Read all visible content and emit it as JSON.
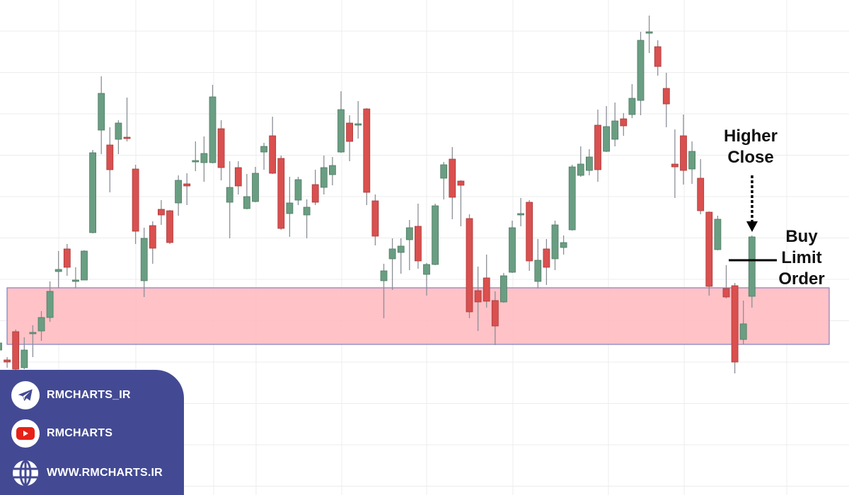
{
  "chart_data": {
    "type": "candlestick",
    "title": "",
    "xlabel": "",
    "ylabel": "",
    "ylim": [
      0,
      60
    ],
    "grid": true,
    "colors": {
      "up": "#6a9e82",
      "down": "#d9504f",
      "up_border": "#4f7a63",
      "down_border": "#a83a3a",
      "wick": "#8a8f96",
      "zone_fill": "#ffbfc4",
      "zone_border": "#7f80c0",
      "grid": "#ececec"
    },
    "candles_ohlc": [
      [
        10.5,
        11.8,
        10.2,
        11.5
      ],
      [
        9.1,
        9.5,
        8.0,
        8.8
      ],
      [
        13.1,
        13.4,
        7.5,
        7.8
      ],
      [
        8.0,
        12.3,
        7.8,
        10.5
      ],
      [
        12.9,
        14.0,
        9.5,
        13.0
      ],
      [
        13.2,
        16.0,
        11.8,
        15.1
      ],
      [
        15.1,
        20.2,
        14.5,
        18.8
      ],
      [
        21.6,
        24.5,
        19.3,
        21.9
      ],
      [
        24.8,
        25.5,
        21.0,
        22.2
      ],
      [
        20.3,
        22.2,
        19.2,
        20.4
      ],
      [
        20.4,
        24.6,
        20.4,
        24.5
      ],
      [
        27.1,
        38.8,
        27.0,
        38.4
      ],
      [
        41.6,
        49.2,
        38.2,
        46.8
      ],
      [
        39.5,
        42.0,
        32.8,
        36.0
      ],
      [
        40.3,
        43.0,
        38.2,
        42.6
      ],
      [
        40.6,
        46.2,
        40.0,
        40.5
      ],
      [
        36.1,
        36.7,
        25.5,
        27.3
      ],
      [
        20.3,
        27.8,
        18.0,
        26.3
      ],
      [
        28.1,
        28.7,
        22.7,
        24.9
      ],
      [
        30.4,
        31.7,
        28.2,
        29.6
      ],
      [
        30.2,
        30.3,
        25.5,
        25.7
      ],
      [
        31.3,
        35.2,
        29.5,
        34.5
      ],
      [
        34.0,
        35.5,
        31.0,
        33.7
      ],
      [
        37.2,
        40.0,
        35.8,
        37.3
      ],
      [
        37.0,
        40.7,
        34.3,
        38.3
      ],
      [
        37.0,
        48.0,
        36.9,
        46.3
      ],
      [
        41.8,
        43.0,
        34.5,
        36.3
      ],
      [
        31.4,
        37.2,
        26.3,
        33.5
      ],
      [
        36.3,
        37.2,
        32.5,
        33.7
      ],
      [
        30.5,
        35.4,
        30.4,
        32.2
      ],
      [
        31.5,
        36.4,
        31.4,
        35.5
      ],
      [
        38.5,
        39.8,
        36.0,
        39.3
      ],
      [
        40.8,
        43.5,
        35.4,
        35.5
      ],
      [
        37.6,
        38.0,
        27.5,
        27.7
      ],
      [
        29.8,
        35.0,
        26.5,
        31.3
      ],
      [
        31.7,
        35.0,
        31.0,
        34.6
      ],
      [
        29.6,
        31.8,
        26.3,
        30.7
      ],
      [
        33.9,
        36.0,
        31.0,
        31.4
      ],
      [
        33.5,
        38.0,
        32.5,
        36.3
      ],
      [
        35.3,
        37.8,
        33.8,
        36.6
      ],
      [
        38.5,
        47.1,
        38.4,
        44.5
      ],
      [
        42.6,
        43.7,
        37.2,
        40.0
      ],
      [
        42.4,
        45.7,
        40.4,
        42.5
      ],
      [
        44.6,
        44.7,
        31.0,
        32.8
      ],
      [
        31.6,
        32.5,
        25.3,
        26.6
      ],
      [
        20.3,
        22.7,
        15.0,
        21.7
      ],
      [
        23.4,
        26.3,
        19.0,
        24.8
      ],
      [
        24.3,
        26.3,
        21.3,
        25.2
      ],
      [
        26.1,
        28.9,
        21.8,
        27.8
      ],
      [
        28.0,
        31.2,
        22.0,
        23.1
      ],
      [
        21.2,
        22.8,
        18.2,
        22.6
      ],
      [
        22.6,
        31.2,
        22.5,
        30.9
      ],
      [
        34.8,
        37.1,
        31.8,
        36.7
      ],
      [
        37.5,
        39.2,
        29.0,
        32.1
      ],
      [
        34.4,
        34.5,
        28.0,
        33.8
      ],
      [
        29.1,
        29.7,
        15.0,
        15.9
      ],
      [
        18.9,
        22.3,
        13.2,
        17.3
      ],
      [
        20.7,
        24.0,
        16.5,
        17.4
      ],
      [
        17.5,
        18.8,
        11.2,
        13.9
      ],
      [
        17.3,
        21.4,
        17.2,
        21.0
      ],
      [
        21.5,
        28.8,
        21.4,
        27.8
      ],
      [
        29.7,
        32.0,
        28.0,
        29.8
      ],
      [
        31.4,
        31.7,
        21.7,
        23.1
      ],
      [
        20.2,
        26.2,
        19.2,
        23.2
      ],
      [
        24.8,
        26.2,
        19.7,
        22.2
      ],
      [
        23.4,
        28.8,
        21.8,
        28.2
      ],
      [
        25.0,
        26.7,
        24.0,
        25.7
      ],
      [
        27.5,
        36.7,
        27.4,
        36.4
      ],
      [
        35.2,
        39.3,
        35.0,
        36.8
      ],
      [
        35.9,
        38.9,
        35.2,
        37.8
      ],
      [
        42.3,
        44.5,
        34.3,
        36.0
      ],
      [
        38.6,
        45.0,
        38.5,
        42.1
      ],
      [
        40.3,
        45.5,
        39.3,
        42.9
      ],
      [
        43.2,
        44.0,
        40.8,
        42.2
      ],
      [
        43.8,
        48.1,
        43.3,
        46.1
      ],
      [
        45.8,
        55.5,
        43.7,
        54.3
      ],
      [
        55.4,
        57.8,
        52.5,
        55.5
      ],
      [
        53.4,
        54.3,
        49.3,
        50.6
      ],
      [
        47.5,
        49.7,
        42.0,
        45.3
      ],
      [
        36.8,
        41.7,
        32.0,
        36.4
      ],
      [
        40.8,
        43.8,
        33.9,
        35.9
      ],
      [
        36.1,
        40.0,
        34.0,
        38.6
      ],
      [
        34.8,
        37.5,
        29.7,
        30.2
      ],
      [
        30.0,
        30.1,
        18.2,
        19.5
      ],
      [
        24.7,
        29.5,
        24.6,
        29.0
      ],
      [
        19.2,
        22.5,
        17.8,
        18.0
      ],
      [
        19.6,
        20.0,
        7.2,
        8.8
      ],
      [
        12.0,
        17.5,
        11.3,
        14.2
      ],
      [
        18.1,
        26.7,
        16.5,
        26.5
      ]
    ],
    "support_zone": {
      "low": 11.3,
      "high": 19.3
    },
    "buy_limit_level": 23.2,
    "annotations": {
      "higher_close": [
        "Higher",
        "Close"
      ],
      "buy_limit_order": [
        "Buy",
        "Limit",
        "Order"
      ]
    }
  },
  "branding": {
    "panel_color": "#434a93",
    "items": [
      {
        "icon": "telegram-icon",
        "label": "RMCHARTS_IR"
      },
      {
        "icon": "youtube-icon",
        "label": "RMCHARTS"
      },
      {
        "icon": "globe-icon",
        "label": "WWW.RMCHARTS.IR"
      }
    ]
  }
}
